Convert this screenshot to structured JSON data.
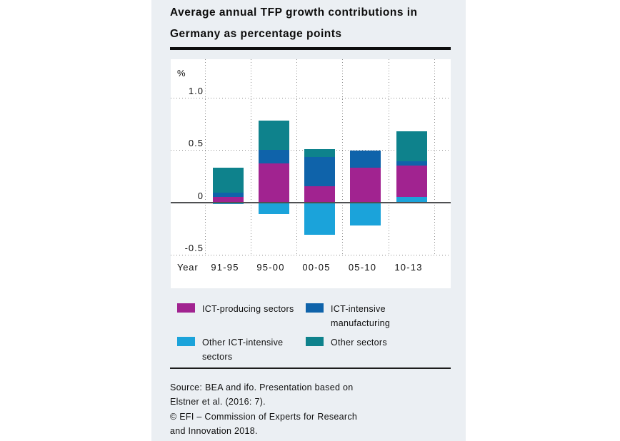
{
  "title": {
    "line1": "Average annual TFP growth contributions in",
    "line2": "Germany as percentage points"
  },
  "chart_data": {
    "type": "bar",
    "stacked": true,
    "title": "Average annual TFP growth contributions in Germany as percentage points",
    "unit_label": "%",
    "xlabel": "Year",
    "ylabel": "%",
    "categories": [
      "91-95",
      "95-00",
      "00-05",
      "05-10",
      "10-13"
    ],
    "series": [
      {
        "name": "ICT-producing sectors",
        "color": "#a12390",
        "values": [
          0.05,
          0.37,
          0.15,
          0.33,
          0.3
        ]
      },
      {
        "name": "ICT-intensive manufacturing",
        "color": "#0f63aa",
        "values": [
          0.04,
          0.13,
          0.28,
          0.16,
          0.04
        ]
      },
      {
        "name": "Other ICT-intensive sectors",
        "color": "#1ba3da",
        "values": [
          -0.02,
          -0.11,
          -0.31,
          -0.22,
          0.05
        ]
      },
      {
        "name": "Other sectors",
        "color": "#0e828c",
        "values": [
          0.24,
          0.28,
          0.08,
          0.0,
          0.29
        ]
      }
    ],
    "stack_order": [
      2,
      0,
      1,
      3
    ],
    "y_ticks": [
      {
        "label": "1.0",
        "value": 1.0
      },
      {
        "label": "0.5",
        "value": 0.5
      },
      {
        "label": "0",
        "value": 0.0
      },
      {
        "label": "-0.5",
        "value": -0.5
      }
    ],
    "ylim": [
      -0.82,
      1.36
    ],
    "grid": "dotted",
    "legend_position": "bottom"
  },
  "legend": {
    "items": [
      {
        "label": "ICT-producing sectors",
        "color": "#a12390"
      },
      {
        "label": "ICT-intensive manufacturing",
        "color": "#0f63aa"
      },
      {
        "label": "Other ICT-intensive sectors",
        "color": "#1ba3da"
      },
      {
        "label": "Other sectors",
        "color": "#0e828c"
      }
    ]
  },
  "source": {
    "lines": [
      "Source: BEA and ifo. Presentation based on",
      "Elstner et al. (2016: 7).",
      "© EFI – Commission of Experts for Research",
      "and Innovation 2018."
    ]
  }
}
